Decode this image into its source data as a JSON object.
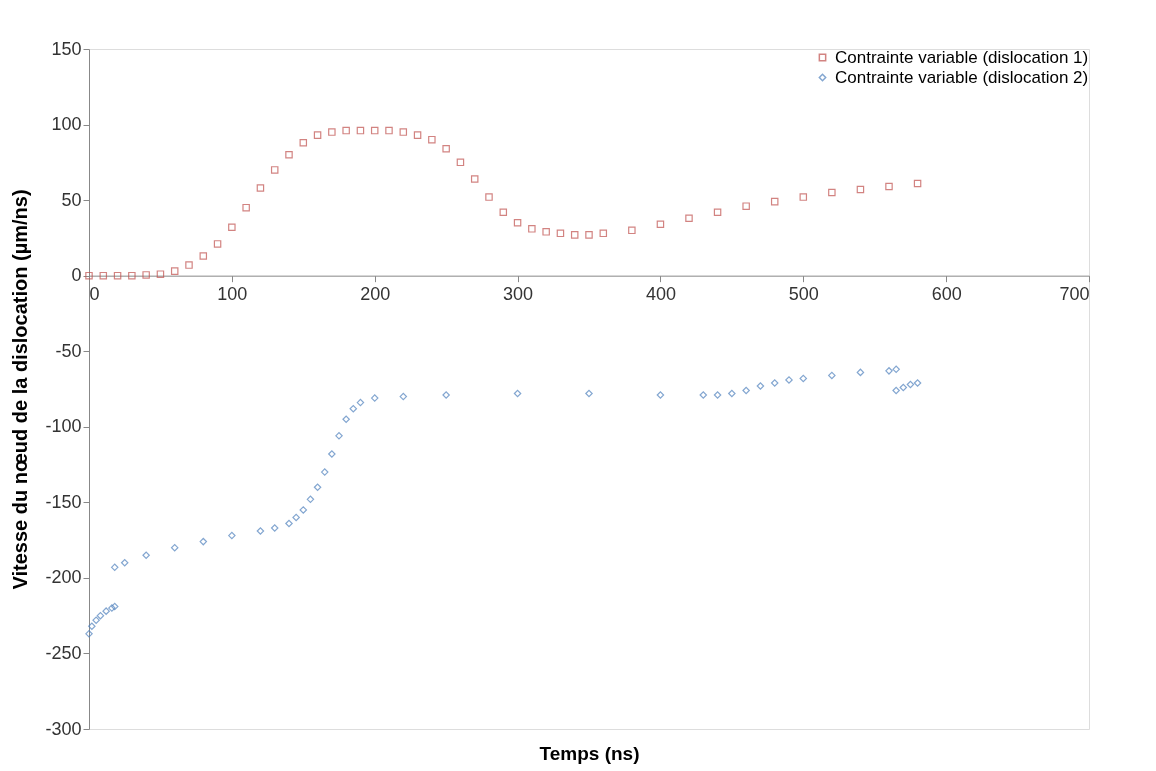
{
  "chart_data": {
    "type": "scatter",
    "xlabel": "Temps (ns)",
    "ylabel": "Vitesse du nœud de la dislocation (µm/ns)",
    "xlim": [
      0,
      700
    ],
    "xticks": [
      0,
      100,
      200,
      300,
      400,
      500,
      600,
      700
    ],
    "ylim": [
      -300,
      150
    ],
    "yticks": [
      -300,
      -250,
      -200,
      -150,
      -100,
      -50,
      0,
      50,
      100,
      150
    ],
    "grid": false,
    "legend": "top right",
    "series": [
      {
        "name": "Contrainte variable (dislocation 1)",
        "color": "#c0504d",
        "marker": "square",
        "x": [
          0,
          10,
          20,
          30,
          40,
          50,
          60,
          70,
          80,
          90,
          100,
          110,
          120,
          130,
          140,
          150,
          160,
          170,
          180,
          190,
          200,
          210,
          220,
          230,
          240,
          250,
          260,
          270,
          280,
          290,
          300,
          310,
          320,
          330,
          340,
          350,
          360,
          380,
          400,
          420,
          440,
          460,
          480,
          500,
          520,
          540,
          560,
          580
        ],
        "values": [
          0,
          0,
          0,
          0,
          0.5,
          1,
          3,
          7,
          13,
          21,
          32,
          45,
          58,
          70,
          80,
          88,
          93,
          95,
          96,
          96,
          96,
          96,
          95,
          93,
          90,
          84,
          75,
          64,
          52,
          42,
          35,
          31,
          29,
          28,
          27,
          27,
          28,
          30,
          34,
          38,
          42,
          46,
          49,
          52,
          55,
          57,
          59,
          61
        ]
      },
      {
        "name": "Contrainte variable (dislocation 2)",
        "color": "#4f81bd",
        "marker": "diamond",
        "x": [
          0,
          2,
          5,
          8,
          12,
          16,
          18,
          18,
          25,
          40,
          60,
          80,
          100,
          120,
          130,
          140,
          145,
          150,
          155,
          160,
          165,
          170,
          175,
          180,
          185,
          190,
          200,
          220,
          250,
          300,
          350,
          400,
          430,
          440,
          450,
          460,
          470,
          480,
          490,
          500,
          520,
          540,
          560,
          565,
          565,
          570,
          575,
          580
        ],
        "values": [
          -237,
          -232,
          -228,
          -225,
          -222,
          -220,
          -219,
          -193,
          -190,
          -185,
          -180,
          -176,
          -172,
          -169,
          -167,
          -164,
          -160,
          -155,
          -148,
          -140,
          -130,
          -118,
          -106,
          -95,
          -88,
          -84,
          -81,
          -80,
          -79,
          -78,
          -78,
          -79,
          -79,
          -79,
          -78,
          -76,
          -73,
          -71,
          -69,
          -68,
          -66,
          -64,
          -63,
          -62,
          -76,
          -74,
          -72,
          -71
        ]
      }
    ]
  }
}
